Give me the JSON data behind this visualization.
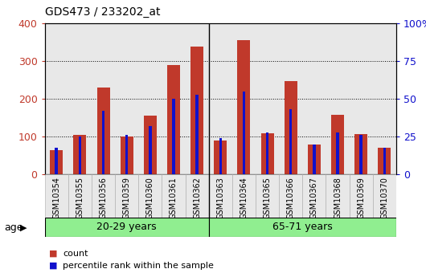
{
  "title": "GDS473 / 233202_at",
  "samples": [
    "GSM10354",
    "GSM10355",
    "GSM10356",
    "GSM10359",
    "GSM10360",
    "GSM10361",
    "GSM10362",
    "GSM10363",
    "GSM10364",
    "GSM10365",
    "GSM10366",
    "GSM10367",
    "GSM10368",
    "GSM10369",
    "GSM10370"
  ],
  "count_values": [
    65,
    105,
    230,
    100,
    155,
    290,
    340,
    90,
    355,
    110,
    248,
    80,
    158,
    108,
    72
  ],
  "percentile_values": [
    18,
    25,
    42,
    26,
    32,
    50,
    53,
    24,
    55,
    28,
    43,
    20,
    28,
    26,
    18
  ],
  "group1_label": "20-29 years",
  "group1_count": 7,
  "group2_label": "65-71 years",
  "group2_count": 8,
  "age_label": "age",
  "bar_color_red": "#C0392B",
  "bar_color_blue": "#1010CC",
  "group_bg_color": "#90EE90",
  "plot_bg_color": "#E8E8E8",
  "ylim_left": [
    0,
    400
  ],
  "ylim_right": [
    0,
    100
  ],
  "yticks_left": [
    0,
    100,
    200,
    300,
    400
  ],
  "yticks_right": [
    0,
    25,
    50,
    75,
    100
  ],
  "legend_count": "count",
  "legend_pct": "percentile rank within the sample",
  "red_bar_width": 0.55,
  "blue_bar_width": 0.12
}
